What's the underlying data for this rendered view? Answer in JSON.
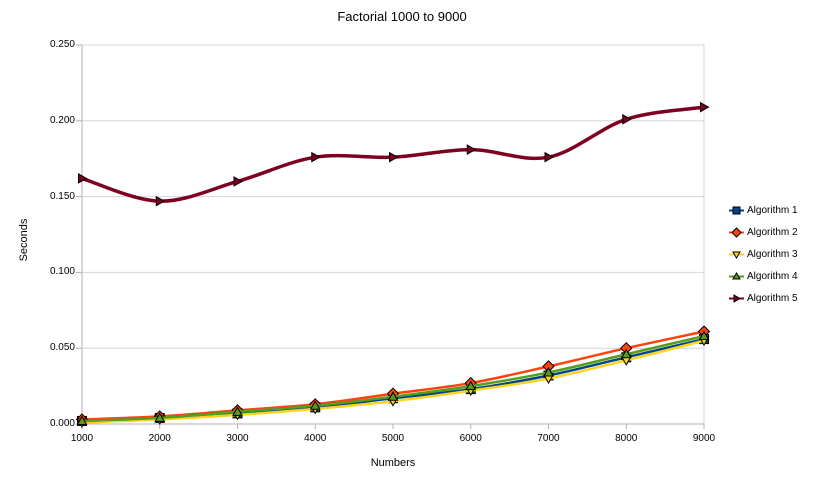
{
  "chart_data": {
    "type": "line",
    "title": "Factorial 1000 to 9000",
    "xlabel": "Numbers",
    "ylabel": "Seconds",
    "x": [
      1000,
      2000,
      3000,
      4000,
      5000,
      6000,
      7000,
      8000,
      9000
    ],
    "xlim": [
      1000,
      9000
    ],
    "ylim": [
      0,
      0.25
    ],
    "x_tick_labels": [
      "1000",
      "2000",
      "3000",
      "4000",
      "5000",
      "6000",
      "7000",
      "8000",
      "9000"
    ],
    "y_ticks": [
      0,
      0.05,
      0.1,
      0.15,
      0.2,
      0.25
    ],
    "y_tick_labels": [
      "0.000",
      "0.050",
      "0.100",
      "0.150",
      "0.200",
      "0.250"
    ],
    "grid": "horizontal",
    "legend_position": "right",
    "grid_color": "#d6d6d6",
    "axis_color": "#b0b0b0",
    "series": [
      {
        "name": "Algorithm 1",
        "color": "#004586",
        "marker": "square",
        "line_width": 2.5,
        "values": [
          0.002,
          0.004,
          0.007,
          0.011,
          0.017,
          0.023,
          0.032,
          0.044,
          0.056
        ]
      },
      {
        "name": "Algorithm 2",
        "color": "#FF420E",
        "marker": "diamond",
        "line_width": 2.5,
        "values": [
          0.003,
          0.005,
          0.009,
          0.013,
          0.02,
          0.027,
          0.038,
          0.05,
          0.061
        ]
      },
      {
        "name": "Algorithm 3",
        "color": "#FFD320",
        "marker": "triangle-down",
        "line_width": 2.5,
        "values": [
          0.001,
          0.003,
          0.006,
          0.01,
          0.015,
          0.022,
          0.03,
          0.042,
          0.055
        ]
      },
      {
        "name": "Algorithm 4",
        "color": "#579D1C",
        "marker": "triangle-up",
        "line_width": 2.5,
        "values": [
          0.002,
          0.004,
          0.008,
          0.012,
          0.018,
          0.025,
          0.034,
          0.046,
          0.058
        ]
      },
      {
        "name": "Algorithm 5",
        "color": "#7E0021",
        "marker": "triangle-right",
        "line_width": 3.5,
        "values": [
          0.162,
          0.147,
          0.16,
          0.176,
          0.176,
          0.181,
          0.176,
          0.201,
          0.209
        ]
      }
    ]
  }
}
